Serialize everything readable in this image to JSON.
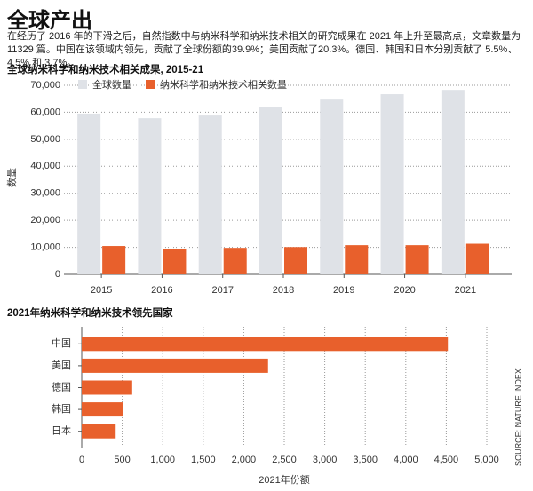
{
  "header": {
    "title": "全球产出",
    "subtitle": "在经历了 2016 年的下滑之后，自然指数中与纳米科学和纳米技术相关的研究成果在 2021 年上升至最高点，文章数量为 11329 篇。中国在该领域内领先，贡献了全球份额的39.9%；美国贡献了20.3%。德国、韩国和日本分别贡献了 5.5%、4.5% 和 3.7%。"
  },
  "chart_data": [
    {
      "type": "bar",
      "title": "全球纳米科学和纳米技术相关成果, 2015-21",
      "ylabel": "数量",
      "categories": [
        "2015",
        "2016",
        "2017",
        "2018",
        "2019",
        "2020",
        "2021"
      ],
      "series": [
        {
          "name": "全球数量",
          "color": "#dfe2e7",
          "values": [
            59500,
            57800,
            58800,
            62100,
            64700,
            66700,
            68300
          ]
        },
        {
          "name": "纳米科学和纳米技术相关数量",
          "color": "#e8602c",
          "values": [
            10500,
            9500,
            9800,
            10100,
            10800,
            10800,
            11329
          ]
        }
      ],
      "ylim": [
        0,
        70000
      ],
      "yticks": [
        0,
        {
          "value": 10000,
          "label": "10,000"
        },
        {
          "value": 20000,
          "label": "20,000"
        },
        {
          "value": 30000,
          "label": "30,000"
        },
        {
          "value": 40000,
          "label": "40,000"
        },
        {
          "value": 50000,
          "label": "50,000"
        },
        {
          "value": 60000,
          "label": "60,000"
        },
        {
          "value": 70000,
          "label": "70,000"
        }
      ],
      "grid": true,
      "legend": "top-left"
    },
    {
      "type": "barh",
      "title": "2021年纳米科学和纳米技术领先国家",
      "xlabel": "2021年份额",
      "categories": [
        "中国",
        "美国",
        "德国",
        "韩国",
        "日本"
      ],
      "values": [
        4520,
        2300,
        623,
        510,
        419
      ],
      "color": "#e8602c",
      "xlim": [
        0,
        5000
      ],
      "xticks": [
        0,
        500,
        {
          "value": 1000,
          "label": "1,000"
        },
        {
          "value": 1500,
          "label": "1,500"
        },
        {
          "value": 2000,
          "label": "2,000"
        },
        {
          "value": 2500,
          "label": "2,500"
        },
        {
          "value": 3000,
          "label": "3,000"
        },
        {
          "value": 3500,
          "label": "3,500"
        },
        {
          "value": 4000,
          "label": "4,000"
        },
        {
          "value": 4500,
          "label": "4,500"
        },
        {
          "value": 5000,
          "label": "5,000"
        }
      ],
      "grid": true
    }
  ],
  "source": "SOURCE: NATURE INDEX"
}
